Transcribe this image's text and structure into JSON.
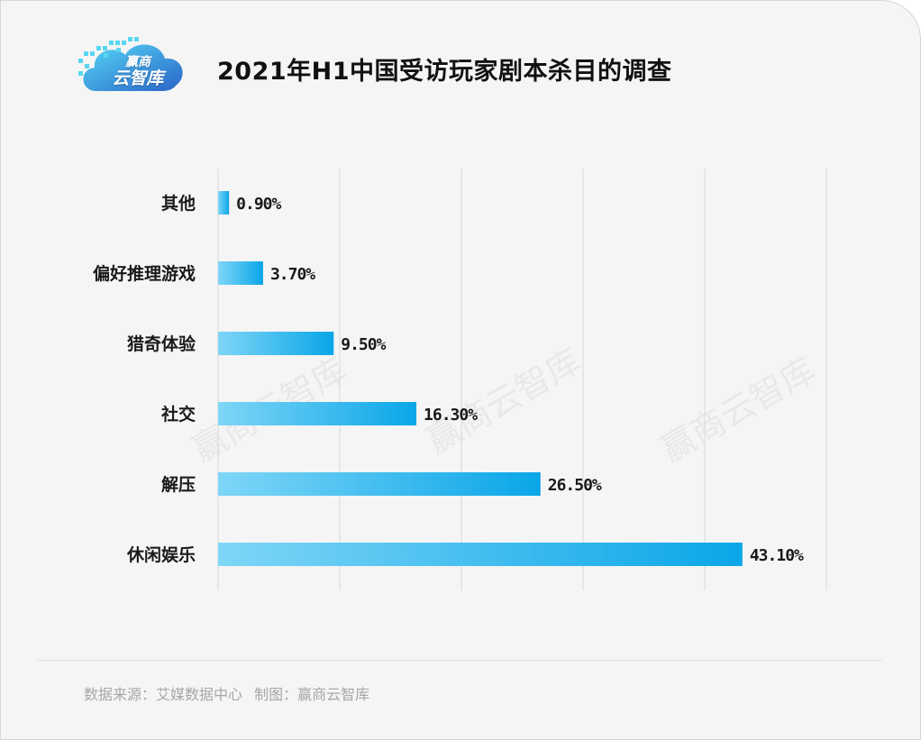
{
  "header": {
    "title": "2021年H1中国受访玩家剧本杀目的调查",
    "logo_line1": "赢商",
    "logo_line2": "云智库"
  },
  "watermark": "赢商云智库",
  "footer": {
    "source": "数据来源：艾媒数据中心",
    "credit": "制图：赢商云智库"
  },
  "colors": {
    "bar_start": "#7fd6f7",
    "bar_end": "#0aa6e8",
    "grid": "#d9d9d9",
    "background": "#f5f5f5"
  },
  "chart_data": {
    "type": "bar",
    "orientation": "horizontal",
    "categories": [
      "其他",
      "偏好推理游戏",
      "猎奇体验",
      "社交",
      "解压",
      "休闲娱乐"
    ],
    "values": [
      0.9,
      3.7,
      9.5,
      16.3,
      26.5,
      43.1
    ],
    "value_labels": [
      "0.90%",
      "3.70%",
      "9.50%",
      "16.30%",
      "26.50%",
      "43.10%"
    ],
    "unit": "%",
    "xlim": [
      0,
      50
    ],
    "grid": true,
    "gridline_count": 5,
    "legend": "none"
  }
}
